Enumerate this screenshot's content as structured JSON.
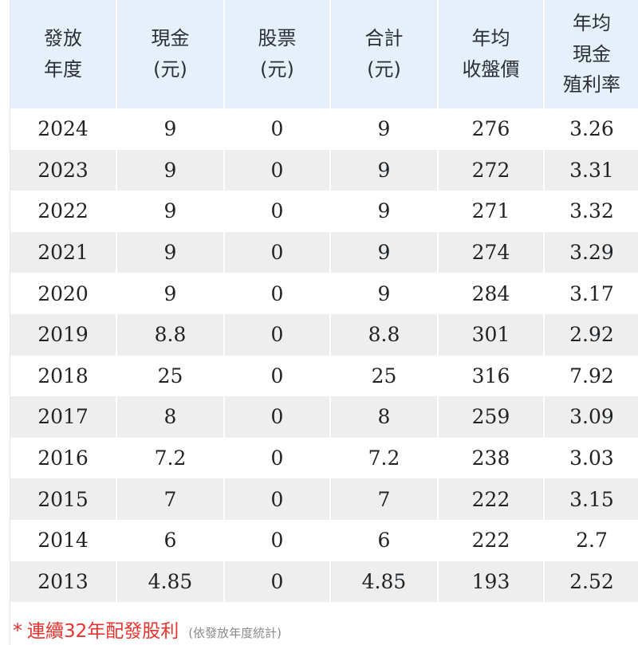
{
  "table": {
    "headers": [
      {
        "lines": [
          "發放",
          "年度"
        ]
      },
      {
        "lines": [
          "現金",
          "(元)"
        ]
      },
      {
        "lines": [
          "股票",
          "(元)"
        ]
      },
      {
        "lines": [
          "合計",
          "(元)"
        ]
      },
      {
        "lines": [
          "年均",
          "收盤價"
        ]
      },
      {
        "lines": [
          "年均",
          "現金",
          "殖利率"
        ]
      }
    ],
    "rows": [
      [
        "2024",
        "9",
        "0",
        "9",
        "276",
        "3.26"
      ],
      [
        "2023",
        "9",
        "0",
        "9",
        "272",
        "3.31"
      ],
      [
        "2022",
        "9",
        "0",
        "9",
        "271",
        "3.32"
      ],
      [
        "2021",
        "9",
        "0",
        "9",
        "274",
        "3.29"
      ],
      [
        "2020",
        "9",
        "0",
        "9",
        "284",
        "3.17"
      ],
      [
        "2019",
        "8.8",
        "0",
        "8.8",
        "301",
        "2.92"
      ],
      [
        "2018",
        "25",
        "0",
        "25",
        "316",
        "7.92"
      ],
      [
        "2017",
        "8",
        "0",
        "8",
        "259",
        "3.09"
      ],
      [
        "2016",
        "7.2",
        "0",
        "7.2",
        "238",
        "3.03"
      ],
      [
        "2015",
        "7",
        "0",
        "7",
        "222",
        "3.15"
      ],
      [
        "2014",
        "6",
        "0",
        "6",
        "222",
        "2.7"
      ],
      [
        "2013",
        "4.85",
        "0",
        "4.85",
        "193",
        "2.52"
      ]
    ]
  },
  "footnote": {
    "star": "*",
    "text": "連續32年配發股利",
    "subtext": "(依發放年度統計)"
  },
  "colors": {
    "header_bg": "#e6f0fb",
    "stripe_bg": "#eeeeee",
    "accent_red": "#e8322e"
  }
}
